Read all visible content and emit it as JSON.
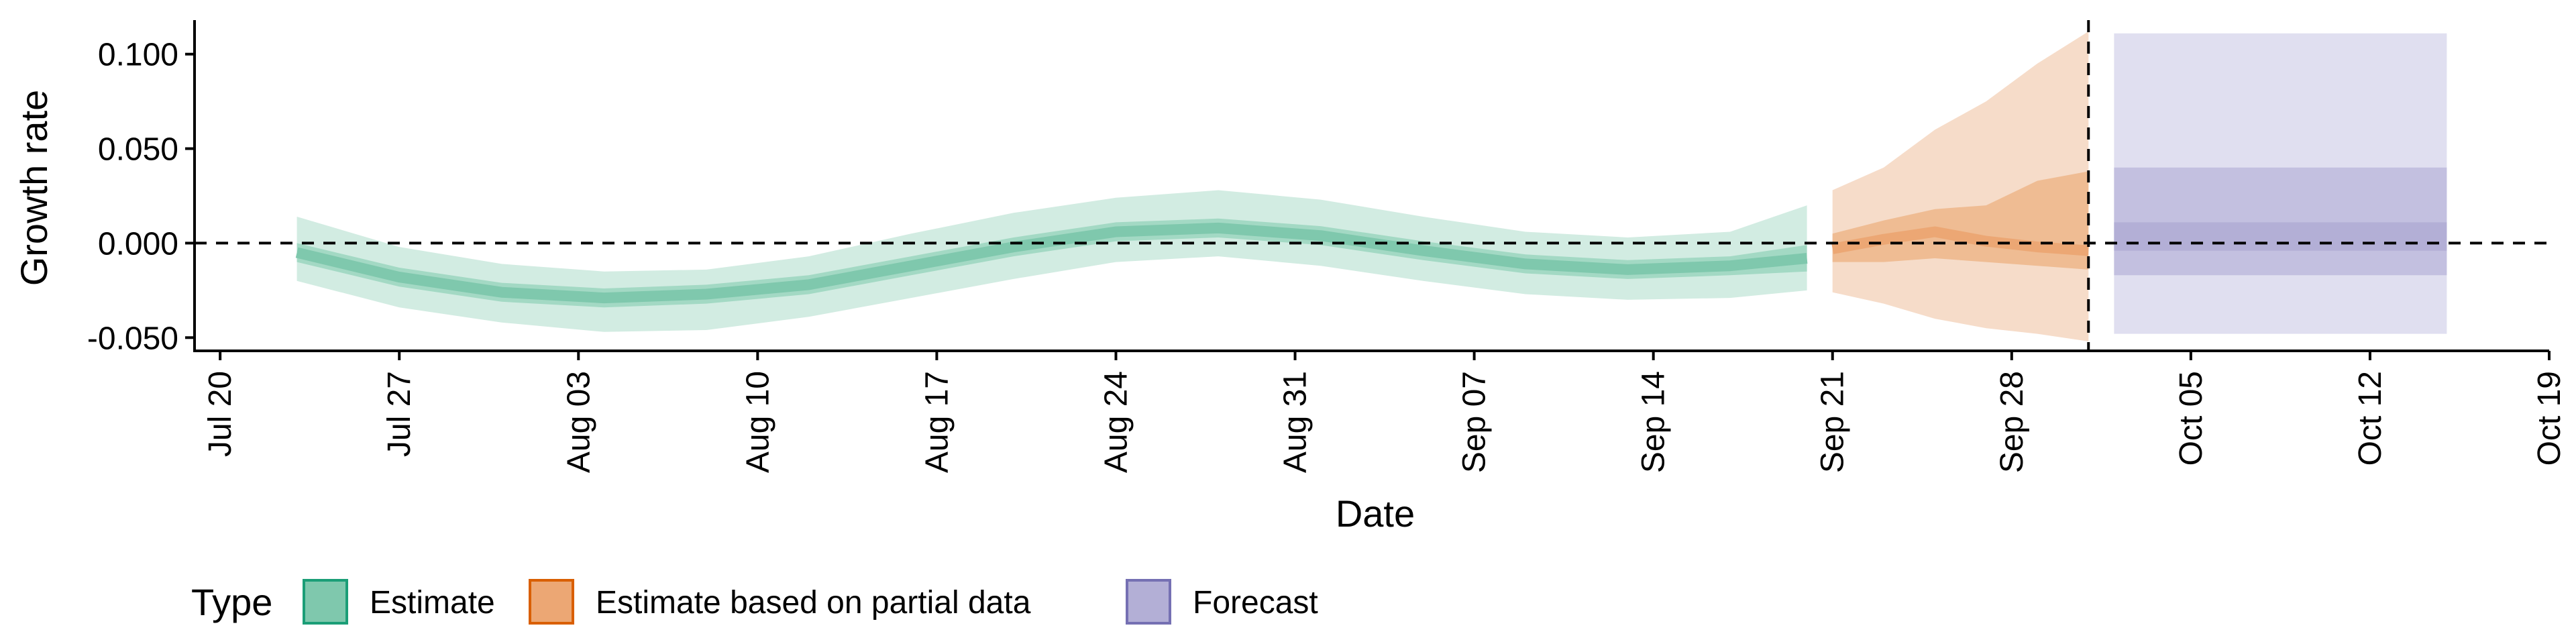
{
  "chart_data": {
    "type": "area",
    "xlabel": "Date",
    "ylabel": "Growth rate",
    "x_ticks": [
      "Jul 20",
      "Jul 27",
      "Aug 03",
      "Aug 10",
      "Aug 17",
      "Aug 24",
      "Aug 31",
      "Sep 07",
      "Sep 14",
      "Sep 21",
      "Sep 28",
      "Oct 05",
      "Oct 12",
      "Oct 19"
    ],
    "x_tick_dates": [
      "2020-07-20",
      "2020-07-27",
      "2020-08-03",
      "2020-08-10",
      "2020-08-17",
      "2020-08-24",
      "2020-08-31",
      "2020-09-07",
      "2020-09-14",
      "2020-09-21",
      "2020-09-28",
      "2020-10-05",
      "2020-10-12",
      "2020-10-19"
    ],
    "xlim": [
      "2020-07-19",
      "2020-10-19"
    ],
    "y_ticks": [
      0.1,
      0.05,
      0.0,
      -0.05
    ],
    "y_tick_labels": [
      "0.100",
      "0.050",
      "0.000",
      "-0.050"
    ],
    "ylim": [
      -0.057,
      0.118
    ],
    "reference_hline": 0.0,
    "reference_vline": "2020-10-01",
    "grid": false,
    "legend": {
      "title": "Type",
      "position": "bottom",
      "entries": [
        {
          "label": "Estimate",
          "fill": "#7fc8ad",
          "stroke": "#1b9e77"
        },
        {
          "label": "Estimate based on partial data",
          "fill": "#eca774",
          "stroke": "#d95f02"
        },
        {
          "label": "Forecast",
          "fill": "#b3afd6",
          "stroke": "#7570b3"
        }
      ]
    },
    "series": [
      {
        "name": "Estimate",
        "color": "#1b9e77",
        "x": [
          "2020-07-23",
          "2020-07-27",
          "2020-07-31",
          "2020-08-04",
          "2020-08-08",
          "2020-08-12",
          "2020-08-16",
          "2020-08-20",
          "2020-08-24",
          "2020-08-28",
          "2020-09-01",
          "2020-09-05",
          "2020-09-09",
          "2020-09-13",
          "2020-09-17",
          "2020-09-20"
        ],
        "median": [
          -0.005,
          -0.018,
          -0.026,
          -0.029,
          -0.027,
          -0.022,
          -0.012,
          -0.002,
          0.006,
          0.008,
          0.004,
          -0.004,
          -0.011,
          -0.014,
          -0.012,
          -0.008
        ],
        "inner_lower": [
          -0.01,
          -0.023,
          -0.031,
          -0.034,
          -0.032,
          -0.027,
          -0.017,
          -0.007,
          0.001,
          0.003,
          -0.001,
          -0.009,
          -0.016,
          -0.019,
          -0.017,
          -0.015
        ],
        "inner_upper": [
          0.0,
          -0.013,
          -0.021,
          -0.024,
          -0.022,
          -0.017,
          -0.007,
          0.003,
          0.011,
          0.013,
          0.009,
          0.001,
          -0.006,
          -0.009,
          -0.007,
          -0.001
        ],
        "outer_lower": [
          -0.02,
          -0.034,
          -0.042,
          -0.047,
          -0.046,
          -0.039,
          -0.029,
          -0.019,
          -0.01,
          -0.007,
          -0.012,
          -0.02,
          -0.027,
          -0.03,
          -0.029,
          -0.025
        ],
        "outer_upper": [
          0.014,
          -0.002,
          -0.011,
          -0.015,
          -0.014,
          -0.007,
          0.005,
          0.016,
          0.024,
          0.028,
          0.023,
          0.014,
          0.006,
          0.003,
          0.006,
          0.02
        ]
      },
      {
        "name": "Estimate based on partial data",
        "color": "#d95f02",
        "x": [
          "2020-09-21",
          "2020-09-23",
          "2020-09-25",
          "2020-09-27",
          "2020-09-29",
          "2020-10-01"
        ],
        "median": [
          -0.003,
          0.002,
          0.006,
          0.001,
          -0.002,
          -0.004
        ],
        "inner_lower": [
          -0.01,
          -0.01,
          -0.008,
          -0.01,
          -0.012,
          -0.014
        ],
        "inner_upper": [
          0.005,
          0.012,
          0.018,
          0.02,
          0.033,
          0.038
        ],
        "outer_lower": [
          -0.026,
          -0.032,
          -0.04,
          -0.045,
          -0.048,
          -0.052
        ],
        "outer_upper": [
          0.028,
          0.04,
          0.06,
          0.075,
          0.095,
          0.112
        ]
      },
      {
        "name": "Forecast",
        "color": "#7570b3",
        "x": [
          "2020-10-02",
          "2020-10-15"
        ],
        "median": [
          0.0,
          0.0
        ],
        "inner_lower": [
          -0.004,
          -0.004
        ],
        "inner_upper": [
          0.011,
          0.011
        ],
        "mid_lower": [
          -0.017,
          -0.017
        ],
        "mid_upper": [
          0.04,
          0.04
        ],
        "outer_lower": [
          -0.048,
          -0.048
        ],
        "outer_upper": [
          0.111,
          0.111
        ]
      }
    ]
  }
}
